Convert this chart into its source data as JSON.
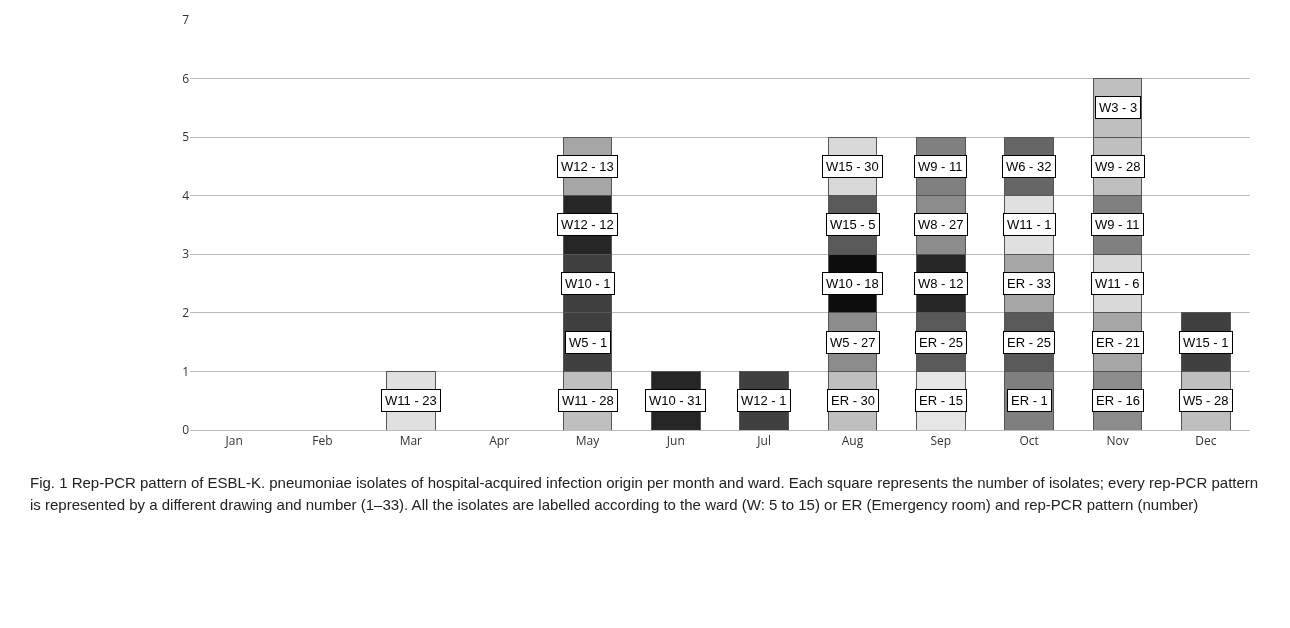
{
  "chart_data": {
    "type": "bar",
    "stacked": true,
    "categories": [
      "Jan",
      "Feb",
      "Mar",
      "Apr",
      "May",
      "Jun",
      "Jul",
      "Aug",
      "Sep",
      "Oct",
      "Nov",
      "Dec"
    ],
    "series": [
      {
        "values": [
          null,
          null,
          1,
          null,
          1,
          1,
          1,
          1,
          1,
          1,
          1,
          1
        ],
        "colors": [
          null,
          null,
          "#e0e0e0",
          null,
          "#bfbfbf",
          "#262626",
          "#404040",
          "#bfbfbf",
          "#e6e6e6",
          "#7f7f7f",
          "#8c8c8c",
          "#bfbfbf"
        ]
      },
      {
        "values": [
          null,
          null,
          null,
          null,
          1,
          null,
          null,
          1,
          1,
          1,
          1,
          1
        ],
        "colors": [
          null,
          null,
          null,
          null,
          "#404040",
          null,
          null,
          "#8c8c8c",
          "#595959",
          "#595959",
          "#a6a6a6",
          "#404040"
        ]
      },
      {
        "values": [
          null,
          null,
          null,
          null,
          1,
          null,
          null,
          1,
          1,
          1,
          1,
          null
        ],
        "colors": [
          null,
          null,
          null,
          null,
          "#404040",
          null,
          null,
          "#0d0d0d",
          "#262626",
          "#a6a6a6",
          "#d9d9d9",
          null
        ]
      },
      {
        "values": [
          null,
          null,
          null,
          null,
          1,
          null,
          null,
          1,
          1,
          1,
          1,
          null
        ],
        "colors": [
          null,
          null,
          null,
          null,
          "#262626",
          null,
          null,
          "#595959",
          "#8c8c8c",
          "#e0e0e0",
          "#808080",
          null
        ]
      },
      {
        "values": [
          null,
          null,
          null,
          null,
          1,
          null,
          null,
          1,
          1,
          1,
          1,
          null
        ],
        "colors": [
          null,
          null,
          null,
          null,
          "#a6a6a6",
          null,
          null,
          "#d9d9d9",
          "#808080",
          "#666666",
          "#bfbfbf",
          null
        ]
      },
      {
        "values": [
          null,
          null,
          null,
          null,
          null,
          null,
          null,
          null,
          null,
          null,
          1,
          null
        ],
        "colors": [
          null,
          null,
          null,
          null,
          null,
          null,
          null,
          null,
          null,
          null,
          "#bfbfbf",
          null
        ]
      }
    ],
    "ylim": [
      0,
      7
    ],
    "yticks": [
      0,
      1,
      2,
      3,
      4,
      5,
      6,
      7
    ],
    "grid": "y",
    "annotations": [
      {
        "text": "W11 - 23",
        "x": "Mar",
        "y": 1
      },
      {
        "text": "W11 - 28",
        "x": "May",
        "y": 1
      },
      {
        "text": "W5 - 1",
        "x": "May",
        "y": 2
      },
      {
        "text": "W10 - 1",
        "x": "May",
        "y": 3
      },
      {
        "text": "W12 - 12",
        "x": "May",
        "y": 4
      },
      {
        "text": "W12 - 13",
        "x": "May",
        "y": 5
      },
      {
        "text": "W10 - 31",
        "x": "Jun",
        "y": 1
      },
      {
        "text": "W12 - 1",
        "x": "Jul",
        "y": 1
      },
      {
        "text": "ER - 30",
        "x": "Aug",
        "y": 1
      },
      {
        "text": "W5 - 27",
        "x": "Aug",
        "y": 2
      },
      {
        "text": "W10 - 18",
        "x": "Aug",
        "y": 3
      },
      {
        "text": "W15 - 5",
        "x": "Aug",
        "y": 4
      },
      {
        "text": "W15 - 30",
        "x": "Aug",
        "y": 5
      },
      {
        "text": "ER - 15",
        "x": "Sep",
        "y": 1
      },
      {
        "text": "ER - 25",
        "x": "Sep",
        "y": 2
      },
      {
        "text": "W8 - 12",
        "x": "Sep",
        "y": 3
      },
      {
        "text": "W8 - 27",
        "x": "Sep",
        "y": 4
      },
      {
        "text": "W9 - 11",
        "x": "Sep",
        "y": 5
      },
      {
        "text": "ER - 1",
        "x": "Oct",
        "y": 1
      },
      {
        "text": "ER - 25",
        "x": "Oct",
        "y": 2
      },
      {
        "text": "ER - 33",
        "x": "Oct",
        "y": 3
      },
      {
        "text": "W11 - 1",
        "x": "Oct",
        "y": 4
      },
      {
        "text": "W6 - 32",
        "x": "Oct",
        "y": 5
      },
      {
        "text": "ER - 16",
        "x": "Nov",
        "y": 1
      },
      {
        "text": "ER - 21",
        "x": "Nov",
        "y": 2
      },
      {
        "text": "W11 - 6",
        "x": "Nov",
        "y": 3
      },
      {
        "text": "W9 - 11",
        "x": "Nov",
        "y": 4
      },
      {
        "text": "W9 - 28",
        "x": "Nov",
        "y": 5
      },
      {
        "text": "W3 - 3",
        "x": "Nov",
        "y": 6
      },
      {
        "text": "W5 - 28",
        "x": "Dec",
        "y": 1
      },
      {
        "text": "W15 - 1",
        "x": "Dec",
        "y": 2
      },
      "Fig. 1 Rep-PCR pattern of ESBL-K. pneumoniae isolates of hospital-acquired infection origin per month and ward. Each square represents the number of isolates; every rep-PCR pattern is represented by a different drawing and number (1–33). All the isolates are labelled according to the ward (W: 5 to 15) or ER (Emergency room) and rep-PCR pattern (number)"
    ]
  }
}
